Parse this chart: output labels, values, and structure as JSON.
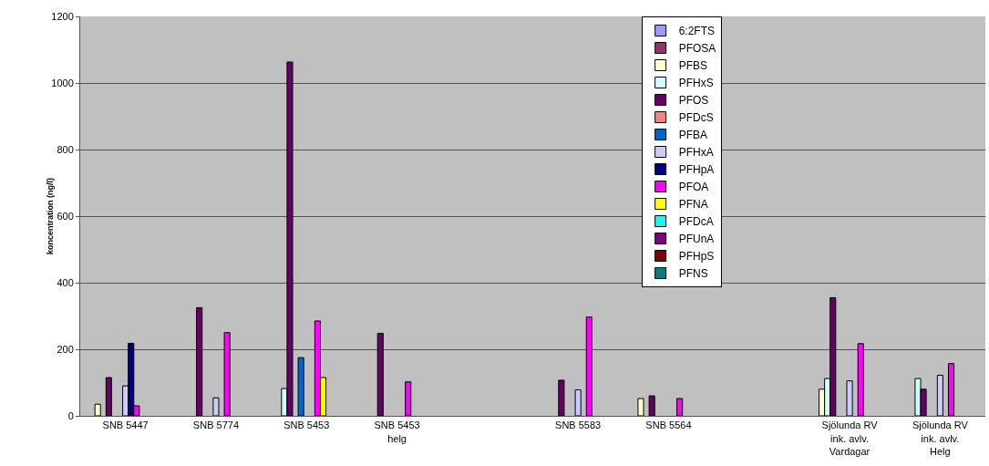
{
  "chart_data": {
    "type": "bar",
    "ylabel": "koncentration (ng/l)",
    "categories": [
      "SNB 5447",
      "SNB 5774",
      "SNB 5453",
      "SNB 5453 helg",
      null,
      "SNB 5583",
      "SNB 5564",
      null,
      "Sjölunda RV ink. avlv. Vardagar",
      "Sjölunda RV ink. avlv. Helg"
    ],
    "series": [
      {
        "name": "6:2FTS",
        "color": "#9999ff",
        "values": [
          null,
          null,
          null,
          null,
          null,
          null,
          null,
          null,
          null,
          null
        ]
      },
      {
        "name": "PFOSA",
        "color": "#993366",
        "values": [
          null,
          null,
          null,
          null,
          null,
          null,
          null,
          null,
          null,
          null
        ]
      },
      {
        "name": "PFBS",
        "color": "#ffffcc",
        "values": [
          35,
          null,
          null,
          null,
          null,
          null,
          52,
          null,
          80,
          null
        ]
      },
      {
        "name": "PFHxS",
        "color": "#ccffff",
        "values": [
          null,
          null,
          82,
          null,
          null,
          null,
          null,
          null,
          112,
          112
        ]
      },
      {
        "name": "PFOS",
        "color": "#660066",
        "values": [
          115,
          325,
          1063,
          248,
          null,
          107,
          60,
          null,
          355,
          80
        ]
      },
      {
        "name": "PFDcS",
        "color": "#ff8080",
        "values": [
          null,
          null,
          null,
          null,
          null,
          null,
          null,
          null,
          null,
          null
        ]
      },
      {
        "name": "PFBA",
        "color": "#0066cc",
        "values": [
          null,
          null,
          175,
          null,
          null,
          null,
          null,
          null,
          null,
          null
        ]
      },
      {
        "name": "PFHxA",
        "color": "#ccccff",
        "values": [
          90,
          54,
          null,
          null,
          null,
          78,
          null,
          null,
          105,
          122
        ]
      },
      {
        "name": "PFHpA",
        "color": "#000080",
        "values": [
          218,
          null,
          null,
          null,
          null,
          null,
          null,
          null,
          null,
          null
        ]
      },
      {
        "name": "PFOA",
        "color": "#ff00ff",
        "values": [
          30,
          250,
          285,
          102,
          null,
          297,
          52,
          null,
          217,
          157
        ]
      },
      {
        "name": "PFNA",
        "color": "#ffff00",
        "values": [
          null,
          null,
          115,
          null,
          null,
          null,
          null,
          null,
          null,
          null
        ]
      },
      {
        "name": "PFDcA",
        "color": "#00ffff",
        "values": [
          null,
          null,
          null,
          null,
          null,
          null,
          null,
          null,
          null,
          null
        ]
      },
      {
        "name": "PFUnA",
        "color": "#800080",
        "values": [
          null,
          null,
          null,
          null,
          null,
          null,
          null,
          null,
          null,
          null
        ]
      },
      {
        "name": "PFHpS",
        "color": "#800000",
        "values": [
          null,
          null,
          null,
          null,
          null,
          null,
          null,
          null,
          null,
          null
        ]
      },
      {
        "name": "PFNS",
        "color": "#008080",
        "values": [
          null,
          null,
          null,
          null,
          null,
          null,
          null,
          null,
          null,
          null
        ]
      }
    ],
    "ylim": [
      0,
      1200
    ],
    "yticks": [
      0,
      200,
      400,
      600,
      800,
      1000,
      1200
    ],
    "grid": "y",
    "legend": "top right"
  }
}
